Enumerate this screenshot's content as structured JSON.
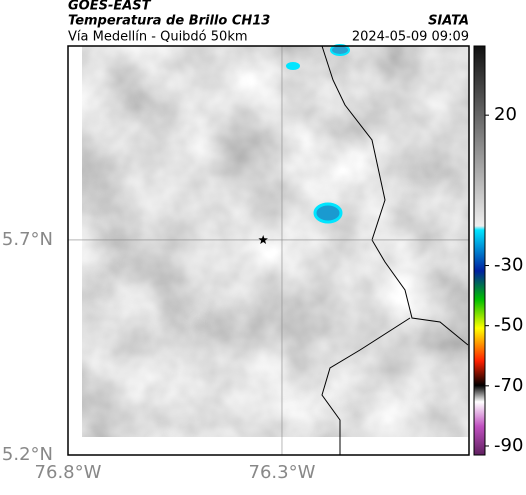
{
  "header": {
    "title": "GOES-EAST",
    "subtitle": "Temperatura de Brillo CH13",
    "route": "Vía Medellín - Quibdó 50km",
    "source": "SIATA",
    "timestamp": "2024-05-09 09:09"
  },
  "map": {
    "xlim": [
      -76.8,
      -75.863
    ],
    "ylim": [
      5.2,
      6.151
    ],
    "lon_ticks": [
      {
        "value": -76.8,
        "label": "76.8°W"
      },
      {
        "value": -76.3,
        "label": "76.3°W"
      }
    ],
    "lat_ticks": [
      {
        "value": 5.7,
        "label": "5.7°N"
      },
      {
        "value": 5.2,
        "label": "5.2°N"
      }
    ],
    "marker": {
      "lon": -76.344,
      "lat": 5.7
    }
  },
  "colorbar": {
    "range": [
      -93,
      43
    ],
    "ticks": [
      20,
      -30,
      -50,
      -70,
      -90
    ]
  }
}
